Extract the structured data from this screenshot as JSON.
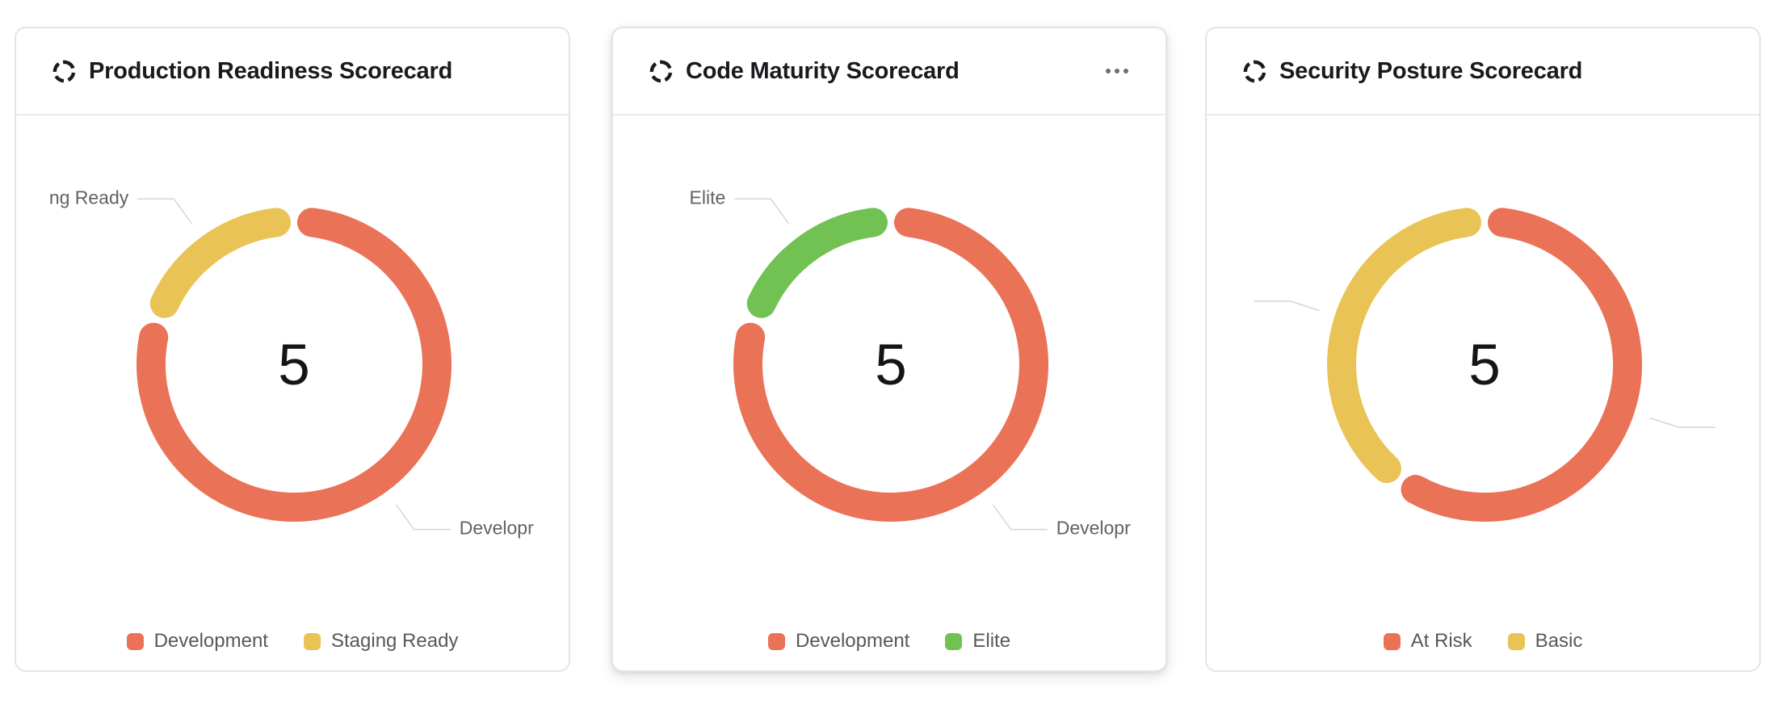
{
  "page": {
    "background": "#ffffff"
  },
  "cards": [
    {
      "title": "Production Readiness Scorecard",
      "menu_visible": false
    },
    {
      "title": "Code Maturity Scorecard",
      "menu_visible": true
    },
    {
      "title": "Security Posture Scorecard",
      "menu_visible": false
    }
  ],
  "chart_data": [
    {
      "type": "pie",
      "variant": "donut",
      "title": "Production Readiness Scorecard",
      "center_total": "5",
      "legend_position": "bottom",
      "segments": [
        {
          "label": "Development",
          "value": 4,
          "color": "#e97257",
          "callout_visible_text": "Developr"
        },
        {
          "label": "Staging Ready",
          "value": 1,
          "color": "#e9c355",
          "callout_visible_text": "ng Ready"
        }
      ]
    },
    {
      "type": "pie",
      "variant": "donut",
      "title": "Code Maturity Scorecard",
      "center_total": "5",
      "legend_position": "bottom",
      "segments": [
        {
          "label": "Development",
          "value": 4,
          "color": "#e97257",
          "callout_visible_text": "Developr"
        },
        {
          "label": "Elite",
          "value": 1,
          "color": "#71c253",
          "callout_visible_text": "Elite"
        }
      ]
    },
    {
      "type": "pie",
      "variant": "donut",
      "title": "Security Posture Scorecard",
      "center_total": "5",
      "legend_position": "bottom",
      "segments": [
        {
          "label": "At Risk",
          "value": 3,
          "color": "#e97257",
          "callout_visible_text": ""
        },
        {
          "label": "Basic",
          "value": 2,
          "color": "#e9c355",
          "callout_visible_text": ""
        }
      ]
    }
  ],
  "style_tokens": {
    "accent_red": "#e97257",
    "accent_yellow": "#e9c355",
    "accent_green": "#71c253",
    "leader_line": "#d8d8d8",
    "callout_text": "#606266",
    "center_number": "#151515"
  }
}
